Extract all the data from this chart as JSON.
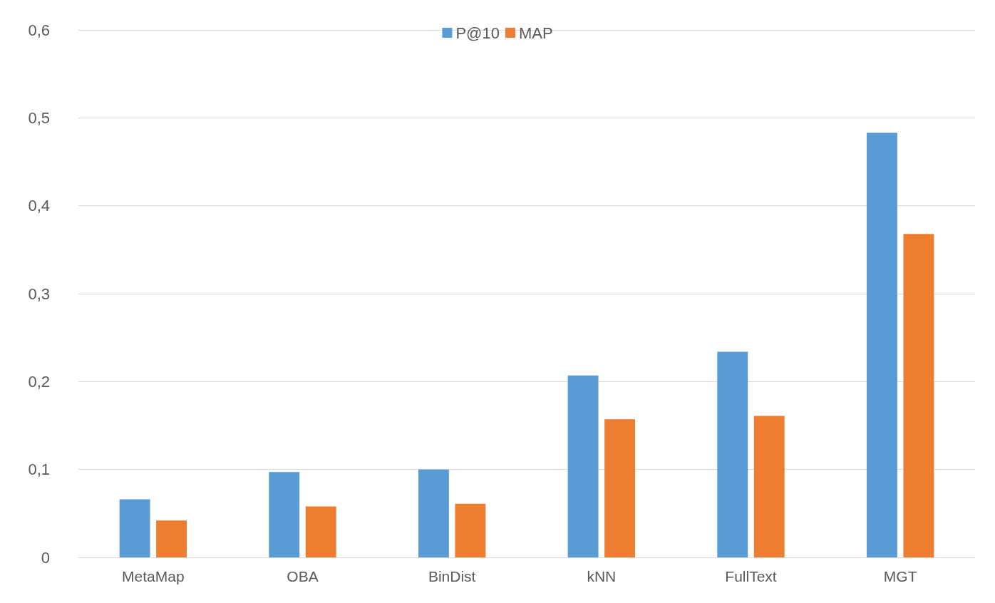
{
  "chart_data": {
    "type": "bar",
    "categories": [
      "MetaMap",
      "OBA",
      "BinDist",
      "kNN",
      "FullText",
      "MGT"
    ],
    "series": [
      {
        "name": "P@10",
        "color": "#5b9bd5",
        "values": [
          0.066,
          0.097,
          0.1,
          0.207,
          0.234,
          0.483
        ]
      },
      {
        "name": "MAP",
        "color": "#ed7d31",
        "values": [
          0.042,
          0.058,
          0.061,
          0.157,
          0.161,
          0.368
        ]
      }
    ],
    "ylim": [
      0,
      0.6
    ],
    "yticks": [
      0,
      {
        "value": 0.1,
        "label": "0,1"
      },
      {
        "value": 0.2,
        "label": "0,2"
      },
      {
        "value": 0.3,
        "label": "0,3"
      },
      {
        "value": 0.4,
        "label": "0,4"
      },
      {
        "value": 0.5,
        "label": "0,5"
      },
      {
        "value": 0.6,
        "label": "0,6"
      }
    ],
    "grid": "y",
    "legend": "top"
  }
}
